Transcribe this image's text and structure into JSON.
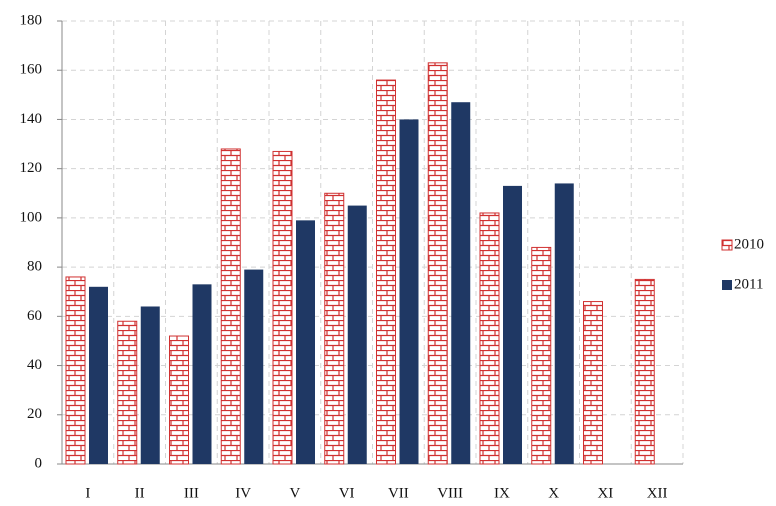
{
  "chart_data": {
    "type": "bar",
    "categories": [
      "I",
      "II",
      "III",
      "IV",
      "V",
      "VI",
      "VII",
      "VIII",
      "IX",
      "X",
      "XI",
      "XII"
    ],
    "series": [
      {
        "name": "2010",
        "color": "#d03030",
        "pattern": "brick",
        "values": [
          76,
          58,
          52,
          128,
          127,
          110,
          156,
          163,
          102,
          88,
          66,
          75
        ]
      },
      {
        "name": "2011",
        "color": "#1f3864",
        "values": [
          72,
          64,
          73,
          79,
          99,
          105,
          140,
          147,
          113,
          114,
          null,
          null
        ]
      }
    ],
    "ylim": [
      0,
      180
    ],
    "yticks": [
      0,
      20,
      40,
      60,
      80,
      100,
      120,
      140,
      160,
      180
    ],
    "grid": true,
    "legend": "right"
  }
}
